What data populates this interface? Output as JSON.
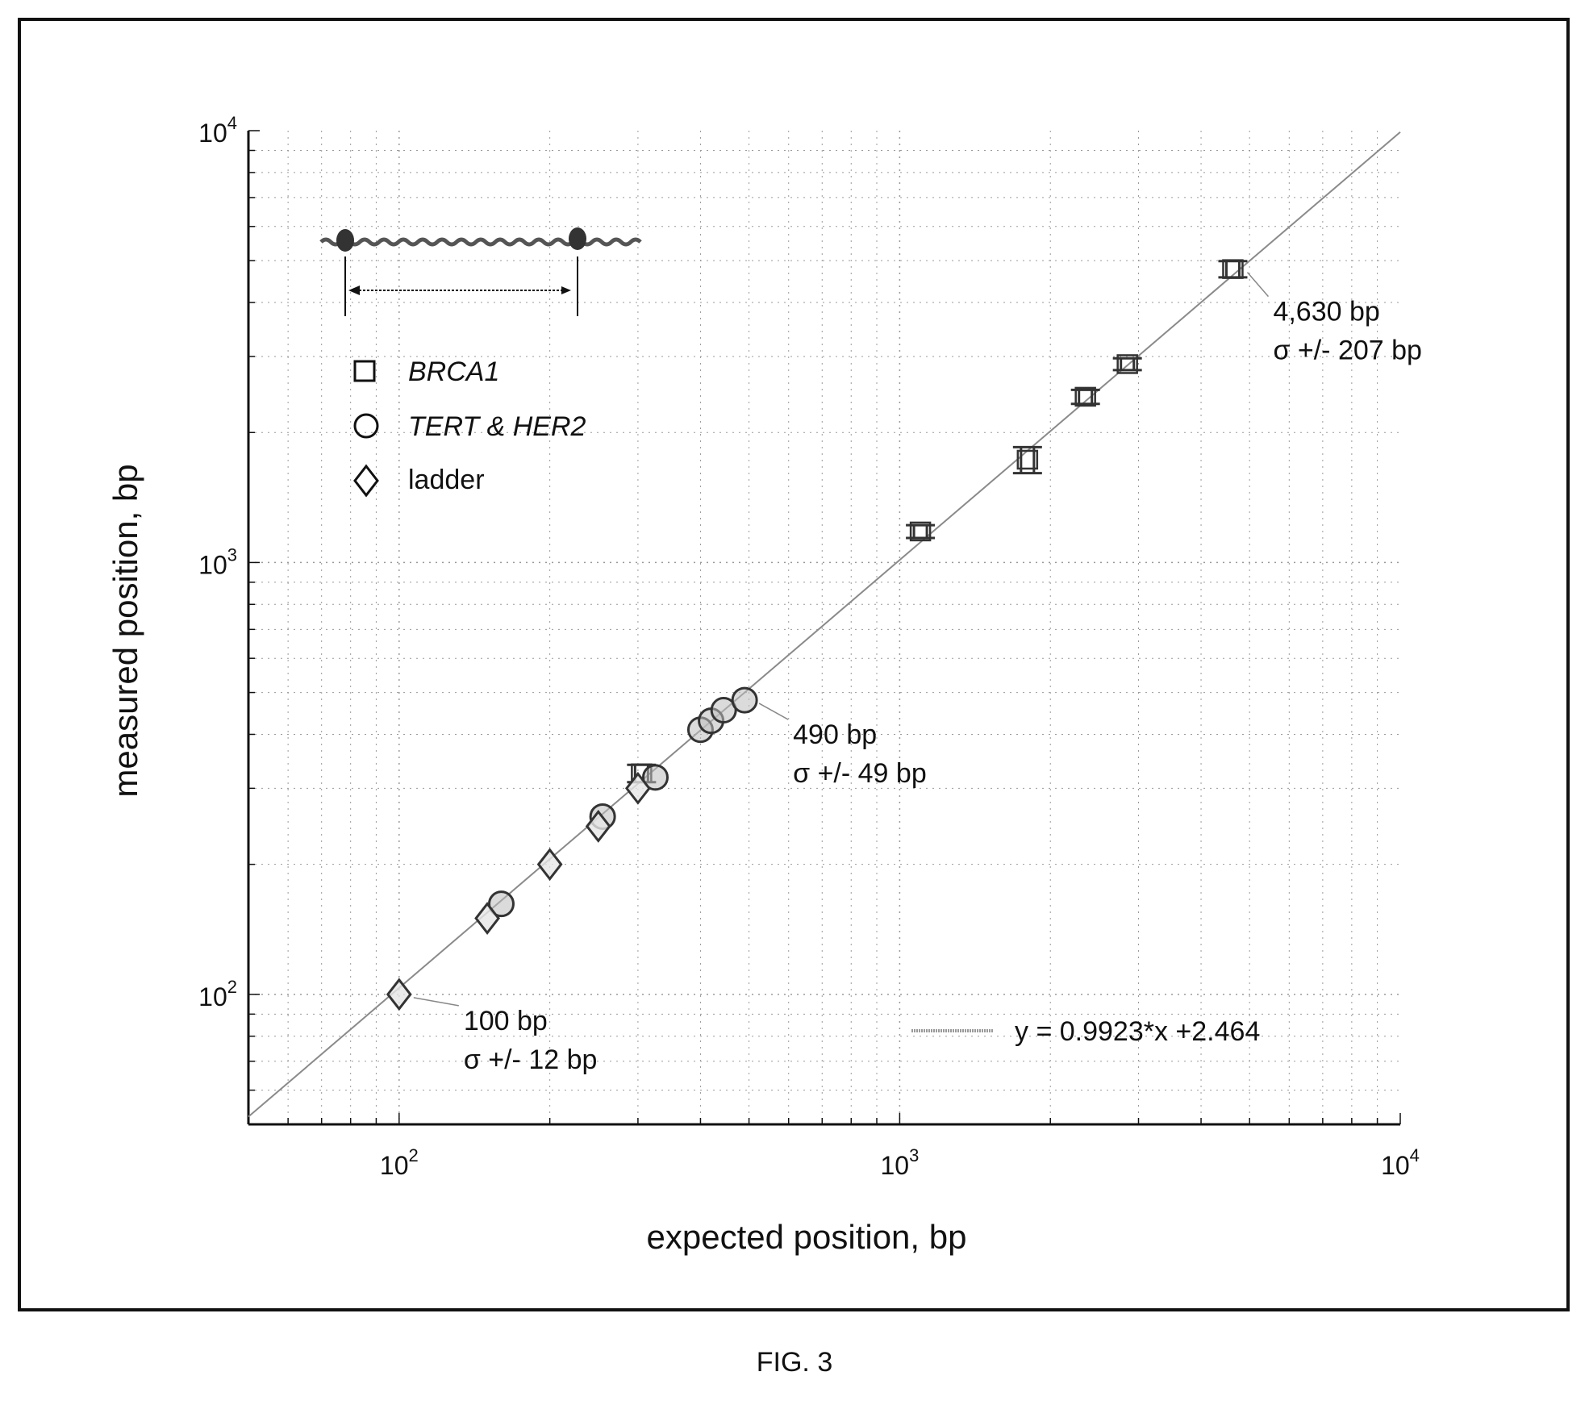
{
  "figure_caption": "FIG. 3",
  "colors": {
    "ink": "#111111",
    "grid": "#9a9a9a",
    "fit_line": "#8a8a8a",
    "marker_fill": "#bdbdbd"
  },
  "chart_data": {
    "type": "scatter",
    "title": "",
    "xlabel": "expected position, bp",
    "ylabel": "measured position, bp",
    "x_scale": "log",
    "y_scale": "log",
    "xlim": [
      50,
      10000
    ],
    "ylim": [
      50,
      10000
    ],
    "grid": true,
    "x_ticks": [
      {
        "value": 100,
        "base": "10",
        "exp": "2"
      },
      {
        "value": 1000,
        "base": "10",
        "exp": "3"
      },
      {
        "value": 10000,
        "base": "10",
        "exp": "4"
      }
    ],
    "y_ticks": [
      {
        "value": 100,
        "base": "10",
        "exp": "2"
      },
      {
        "value": 1000,
        "base": "10",
        "exp": "3"
      },
      {
        "value": 10000,
        "base": "10",
        "exp": "4"
      }
    ],
    "legend": {
      "placement": "top-left",
      "entries": [
        {
          "marker": "square",
          "label": "BRCA1",
          "italic": true
        },
        {
          "marker": "circle",
          "label": "TERT & HER2",
          "italic": true
        },
        {
          "marker": "diamond",
          "label": "ladder",
          "italic": false
        }
      ]
    },
    "fit_line": {
      "slope": 0.9923,
      "intercept": 2.464,
      "label": "y = 0.9923*x +2.464"
    },
    "series": [
      {
        "name": "BRCA1",
        "marker": "square",
        "points": [
          {
            "x": 305,
            "y": 325,
            "err": 15
          },
          {
            "x": 1100,
            "y": 1180,
            "err": 40
          },
          {
            "x": 1800,
            "y": 1730,
            "err": 120
          },
          {
            "x": 2350,
            "y": 2420,
            "err": 90
          },
          {
            "x": 2850,
            "y": 2880,
            "err": 90
          },
          {
            "x": 4630,
            "y": 4780,
            "err": 207
          }
        ]
      },
      {
        "name": "TERT & HER2",
        "marker": "circle",
        "points": [
          {
            "x": 160,
            "y": 162
          },
          {
            "x": 255,
            "y": 258
          },
          {
            "x": 325,
            "y": 318
          },
          {
            "x": 400,
            "y": 410
          },
          {
            "x": 420,
            "y": 430
          },
          {
            "x": 445,
            "y": 455
          },
          {
            "x": 490,
            "y": 480
          }
        ]
      },
      {
        "name": "ladder",
        "marker": "diamond",
        "points": [
          {
            "x": 100,
            "y": 100
          },
          {
            "x": 150,
            "y": 150
          },
          {
            "x": 200,
            "y": 200
          },
          {
            "x": 250,
            "y": 245
          },
          {
            "x": 300,
            "y": 300
          }
        ]
      }
    ],
    "annotations": [
      {
        "x": 100,
        "y": 100,
        "line1": "100 bp",
        "line2": "σ +/- 12 bp"
      },
      {
        "x": 490,
        "y": 480,
        "line1": "490 bp",
        "line2": "σ +/- 49 bp"
      },
      {
        "x": 4630,
        "y": 4780,
        "line1": "4,630 bp",
        "line2": "σ +/- 207 bp"
      }
    ]
  }
}
